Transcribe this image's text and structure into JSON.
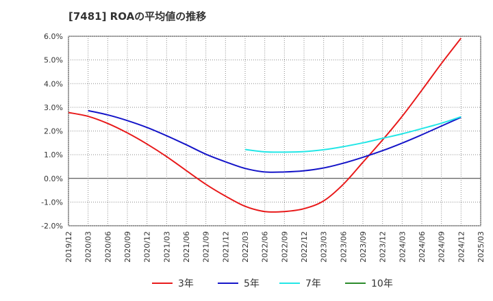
{
  "title": "[7481]  ROAの平均値の推移",
  "chart_data": {
    "type": "line",
    "title": "[7481]  ROAの平均値の推移",
    "x": [
      "2019/12",
      "2020/03",
      "2020/06",
      "2020/09",
      "2020/12",
      "2021/03",
      "2021/06",
      "2021/09",
      "2021/12",
      "2022/03",
      "2022/06",
      "2022/09",
      "2022/12",
      "2023/03",
      "2023/06",
      "2023/09",
      "2023/12",
      "2024/03",
      "2024/06",
      "2024/09",
      "2024/12",
      "2025/03"
    ],
    "ylim": [
      -2.0,
      6.0
    ],
    "yticks": [
      "6.0%",
      "5.0%",
      "4.0%",
      "3.0%",
      "2.0%",
      "1.0%",
      "0.0%",
      "-1.0%",
      "-2.0%"
    ],
    "grid": true,
    "legend_position": "bottom",
    "series": [
      {
        "name": "3年",
        "color": "#e8191a",
        "values": [
          2.78,
          2.62,
          2.32,
          1.92,
          1.45,
          0.92,
          0.33,
          -0.25,
          -0.75,
          -1.18,
          -1.4,
          -1.4,
          -1.28,
          -0.95,
          -0.25,
          0.68,
          1.62,
          2.62,
          3.72,
          4.85,
          5.92,
          null
        ]
      },
      {
        "name": "5年",
        "color": "#1414c8",
        "values": [
          null,
          2.86,
          2.68,
          2.44,
          2.15,
          1.8,
          1.42,
          1.02,
          0.7,
          0.42,
          0.27,
          0.27,
          0.32,
          0.44,
          0.64,
          0.89,
          1.17,
          1.49,
          1.84,
          2.21,
          2.58,
          null
        ]
      },
      {
        "name": "7年",
        "color": "#22e6e6",
        "values": [
          null,
          null,
          null,
          null,
          null,
          null,
          null,
          null,
          null,
          1.22,
          1.12,
          1.11,
          1.13,
          1.21,
          1.34,
          1.5,
          1.69,
          1.88,
          2.1,
          2.33,
          2.6,
          null
        ]
      },
      {
        "name": "10年",
        "color": "#2a8a2a",
        "values": [
          null,
          null,
          null,
          null,
          null,
          null,
          null,
          null,
          null,
          null,
          null,
          null,
          null,
          null,
          null,
          null,
          null,
          null,
          null,
          null,
          null,
          null
        ]
      }
    ]
  }
}
